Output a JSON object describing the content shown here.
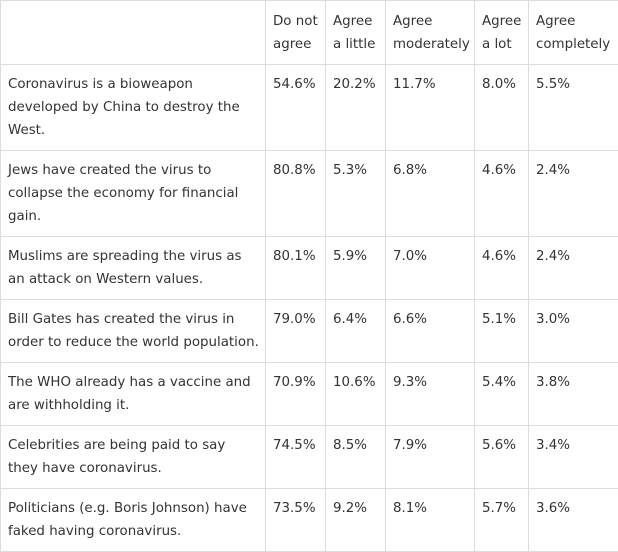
{
  "table": {
    "headers": [
      "",
      "Do not agree",
      "Agree a little",
      "Agree moderately",
      "Agree a lot",
      "Agree completely"
    ],
    "rows": [
      {
        "statement": "Coronavirus is a bioweapon developed by China to destroy the West.",
        "values": [
          "54.6%",
          "20.2%",
          "11.7%",
          "8.0%",
          "5.5%"
        ]
      },
      {
        "statement": "Jews have created the virus to collapse the economy for financial gain.",
        "values": [
          "80.8%",
          "5.3%",
          "6.8%",
          "4.6%",
          "2.4%"
        ]
      },
      {
        "statement": "Muslims are spreading the virus as an attack on Western values.",
        "values": [
          "80.1%",
          "5.9%",
          "7.0%",
          "4.6%",
          "2.4%"
        ]
      },
      {
        "statement": "Bill Gates has created the virus in order to reduce the world population.",
        "values": [
          "79.0%",
          "6.4%",
          "6.6%",
          "5.1%",
          "3.0%"
        ]
      },
      {
        "statement": "The WHO already has a vaccine and are withholding it.",
        "values": [
          "70.9%",
          "10.6%",
          "9.3%",
          "5.4%",
          "3.8%"
        ]
      },
      {
        "statement": "Celebrities are being paid to say they have coronavirus.",
        "values": [
          "74.5%",
          "8.5%",
          "7.9%",
          "5.6%",
          "3.4%"
        ]
      },
      {
        "statement": "Politicians (e.g. Boris Johnson) have faked having coronavirus.",
        "values": [
          "73.5%",
          "9.2%",
          "8.1%",
          "5.7%",
          "3.6%"
        ]
      }
    ]
  }
}
